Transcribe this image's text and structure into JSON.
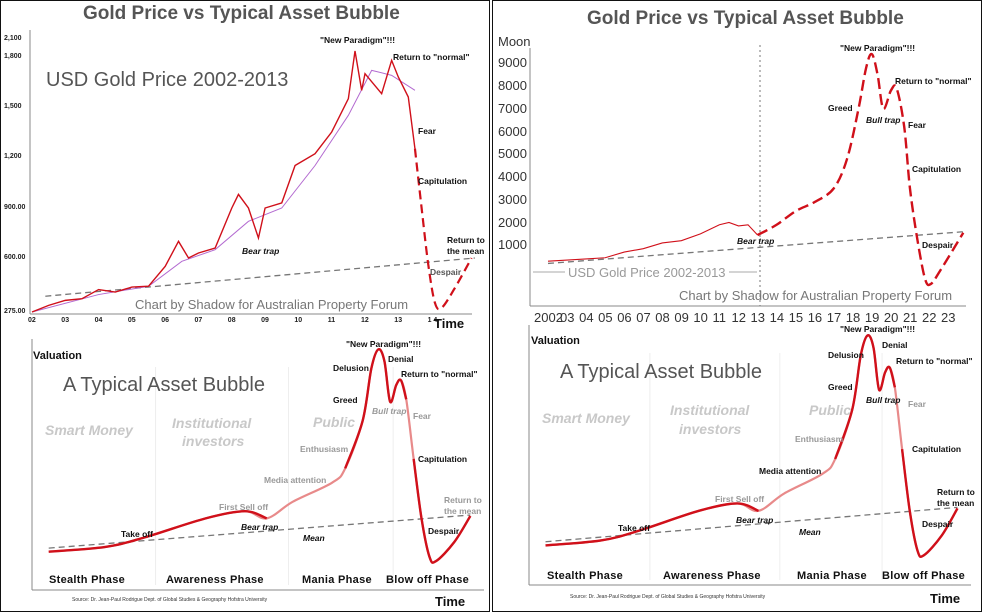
{
  "colors": {
    "price": "#d0101a",
    "price_light": "#e88a8a",
    "moving_avg": "#b36ad0",
    "mean_line": "#777777",
    "title": "#555555"
  },
  "left_panel": {
    "title": "Gold Price vs Typical Asset Bubble",
    "top": {
      "subtitle": "USD Gold Price 2002-2013",
      "watermark": "Chart by Shadow for Australian Property Forum",
      "y_ticks": [
        "2,100",
        "1,800",
        "1,500",
        "1,200",
        "900.00",
        "600.00",
        "275.00"
      ],
      "x_ticks": [
        "02",
        "03",
        "04",
        "05",
        "06",
        "07",
        "08",
        "09",
        "10",
        "11",
        "12",
        "13",
        "1 4"
      ],
      "x_label": "Time",
      "annotations": {
        "new_paradigm": "\"New Paradigm\"!!!",
        "return_normal": "Return to \"normal\"",
        "fear": "Fear",
        "capitulation": "Capitulation",
        "return_mean_1": "Return to",
        "return_mean_2": "the mean",
        "despair": "Despair",
        "bear_trap": "Bear trap"
      }
    },
    "bottom": {
      "y_label": "Valuation",
      "x_label": "Time",
      "subtitle": "A Typical Asset Bubble",
      "groups": {
        "smart": "Smart Money",
        "inst_1": "Institutional",
        "inst_2": "investors",
        "public": "Public"
      },
      "phases": [
        "Stealth Phase",
        "Awareness Phase",
        "Mania Phase",
        "Blow off Phase"
      ],
      "source": "Source: Dr. Jean-Paul Rodrigue Dept. of Global Studies & Geography Hofstra University",
      "annotations": {
        "new_paradigm": "\"New Paradigm\"!!!",
        "denial": "Denial",
        "delusion": "Delusion",
        "return_normal": "Return to \"normal\"",
        "greed": "Greed",
        "bull_trap": "Bull trap",
        "fear": "Fear",
        "enthusiasm": "Enthusiasm",
        "capitulation": "Capitulation",
        "media": "Media attention",
        "return_mean_1": "Return to",
        "return_mean_2": "the mean",
        "first_sell": "First Sell off",
        "bear_trap": "Bear trap",
        "take_off": "Take off",
        "despair": "Despair",
        "mean": "Mean"
      }
    }
  },
  "right_panel": {
    "title": "Gold Price vs Typical Asset Bubble",
    "top": {
      "y_label": "Moon",
      "y_ticks": [
        "9000",
        "8000",
        "7000",
        "6000",
        "5000",
        "4000",
        "3000",
        "2000",
        "1000"
      ],
      "x_ticks": [
        "2002",
        "03",
        "04",
        "05",
        "06",
        "07",
        "08",
        "09",
        "10",
        "11",
        "12",
        "13",
        "14",
        "15",
        "16",
        "17",
        "18",
        "19",
        "20",
        "21",
        "22",
        "23"
      ],
      "range_label": "USD Gold Price 2002-2013",
      "watermark": "Chart by Shadow for Australian Property Forum",
      "annotations": {
        "new_paradigm": "\"New Paradigm\"!!!",
        "return_normal": "Return to \"normal\"",
        "greed": "Greed",
        "bull_trap": "Bull trap",
        "fear": "Fear",
        "capitulation": "Capitulation",
        "bear_trap": "Bear trap",
        "despair": "Despair"
      }
    },
    "bottom": {
      "y_label": "Valuation",
      "x_label": "Time",
      "subtitle": "A Typical Asset Bubble",
      "groups": {
        "smart": "Smart Money",
        "inst_1": "Institutional",
        "inst_2": "investors",
        "public": "Public"
      },
      "phases": [
        "Stealth Phase",
        "Awareness Phase",
        "Mania Phase",
        "Blow off Phase"
      ],
      "source": "Source: Dr. Jean-Paul Rodrigue Dept. of Global Studies & Geography Hofstra University",
      "annotations": {
        "new_paradigm": "\"New Paradigm\"!!!",
        "denial": "Denial",
        "delusion": "Delusion",
        "return_normal": "Return to \"normal\"",
        "greed": "Greed",
        "bull_trap": "Bull trap",
        "fear": "Fear",
        "enthusiasm": "Enthusiasm",
        "capitulation": "Capitulation",
        "media": "Media attention",
        "return_mean_1": "Return to",
        "return_mean_2": "the mean",
        "first_sell": "First Sell off",
        "bear_trap": "Bear trap",
        "take_off": "Take off",
        "despair": "Despair",
        "mean": "Mean"
      }
    }
  },
  "chart_data": [
    {
      "type": "line",
      "title": "Gold Price vs Typical Asset Bubble",
      "subtitle": "USD Gold Price 2002-2013",
      "xlabel": "Time",
      "ylabel": "",
      "y_ticks": [
        275,
        600,
        900,
        1200,
        1500,
        1800,
        2100
      ],
      "xlim": [
        2002,
        2015.3
      ],
      "series": [
        {
          "style": "solid",
          "points": [
            [
              2002.0,
              275
            ],
            [
              2002.5,
              315
            ],
            [
              2003.0,
              345
            ],
            [
              2003.5,
              355
            ],
            [
              2004.0,
              410
            ],
            [
              2004.5,
              395
            ],
            [
              2005.0,
              425
            ],
            [
              2005.5,
              430
            ],
            [
              2006.0,
              550
            ],
            [
              2006.4,
              700
            ],
            [
              2006.7,
              600
            ],
            [
              2007.0,
              630
            ],
            [
              2007.5,
              660
            ],
            [
              2008.0,
              900
            ],
            [
              2008.2,
              980
            ],
            [
              2008.5,
              900
            ],
            [
              2008.8,
              720
            ],
            [
              2009.0,
              900
            ],
            [
              2009.5,
              930
            ],
            [
              2009.9,
              1150
            ],
            [
              2010.5,
              1220
            ],
            [
              2011.0,
              1350
            ],
            [
              2011.5,
              1550
            ],
            [
              2011.7,
              1900
            ],
            [
              2011.9,
              1600
            ],
            [
              2012.0,
              1700
            ],
            [
              2012.5,
              1580
            ],
            [
              2012.8,
              1780
            ],
            [
              2013.0,
              1680
            ],
            [
              2013.3,
              1560
            ],
            [
              2013.5,
              1250
            ]
          ]
        },
        {
          "style": "moving-average",
          "points": [
            [
              2002.0,
              275
            ],
            [
              2004.0,
              380
            ],
            [
              2005.5,
              430
            ],
            [
              2006.5,
              580
            ],
            [
              2007.5,
              650
            ],
            [
              2008.5,
              820
            ],
            [
              2009.5,
              900
            ],
            [
              2010.5,
              1150
            ],
            [
              2011.5,
              1450
            ],
            [
              2012.2,
              1720
            ],
            [
              2012.8,
              1690
            ],
            [
              2013.5,
              1600
            ]
          ]
        },
        {
          "style": "dashed-projection",
          "points": [
            [
              2013.5,
              1250
            ],
            [
              2013.7,
              900
            ],
            [
              2013.9,
              560
            ],
            [
              2014.1,
              330
            ],
            [
              2014.3,
              300
            ],
            [
              2014.7,
              420
            ],
            [
              2015.2,
              600
            ]
          ]
        },
        {
          "style": "mean-trend",
          "points": [
            [
              2002.4,
              370
            ],
            [
              2015.3,
              600
            ]
          ]
        }
      ]
    },
    {
      "type": "line",
      "title": "Gold Price vs Typical Asset Bubble",
      "ylabel": "Moon",
      "xlabel": "",
      "ylim": [
        0,
        9000
      ],
      "xlim": [
        2002,
        2023.9
      ],
      "series": [
        {
          "style": "solid",
          "points": [
            [
              2002,
              300
            ],
            [
              2004,
              400
            ],
            [
              2005,
              450
            ],
            [
              2006,
              700
            ],
            [
              2007,
              850
            ],
            [
              2008,
              1100
            ],
            [
              2009,
              1200
            ],
            [
              2010,
              1500
            ],
            [
              2011,
              1900
            ],
            [
              2011.5,
              2000
            ],
            [
              2012,
              1850
            ],
            [
              2012.5,
              1900
            ],
            [
              2013,
              1450
            ]
          ]
        },
        {
          "style": "dashed-projection",
          "points": [
            [
              2013,
              1450
            ],
            [
              2014,
              1900
            ],
            [
              2015,
              2500
            ],
            [
              2016,
              2900
            ],
            [
              2017,
              3500
            ],
            [
              2017.7,
              4800
            ],
            [
              2018.3,
              7000
            ],
            [
              2018.7,
              8800
            ],
            [
              2019,
              9400
            ],
            [
              2019.3,
              8500
            ],
            [
              2019.6,
              7000
            ],
            [
              2020,
              7800
            ],
            [
              2020.3,
              7900
            ],
            [
              2020.7,
              6200
            ],
            [
              2021,
              3500
            ],
            [
              2021.4,
              1200
            ],
            [
              2021.8,
              -500
            ],
            [
              2022.1,
              -700
            ],
            [
              2022.6,
              -100
            ],
            [
              2023.8,
              1550
            ]
          ]
        },
        {
          "style": "mean-trend",
          "points": [
            [
              2002,
              200
            ],
            [
              2023.9,
              1600
            ]
          ]
        }
      ]
    },
    {
      "type": "line",
      "title": "A Typical Asset Bubble",
      "xlabel": "Time",
      "ylabel": "Valuation",
      "series": [
        {
          "style": "bubble-curve",
          "points": [
            [
              2,
              14
            ],
            [
              15,
              16
            ],
            [
              24,
              20
            ],
            [
              38,
              28
            ],
            [
              47,
              31
            ],
            [
              52,
              28
            ],
            [
              58,
              35
            ],
            [
              67,
              43
            ],
            [
              70,
              49
            ],
            [
              74,
              69
            ],
            [
              76,
              91
            ],
            [
              77.6,
              99
            ],
            [
              79,
              94
            ],
            [
              80.3,
              77
            ],
            [
              81.7,
              84
            ],
            [
              82.8,
              86
            ],
            [
              84,
              78
            ],
            [
              85.7,
              53
            ],
            [
              87.5,
              28
            ],
            [
              89.3,
              12
            ],
            [
              90.8,
              10
            ],
            [
              95,
              18
            ],
            [
              98.7,
              29
            ]
          ]
        },
        {
          "style": "mean-trend",
          "points": [
            [
              2,
              15.5
            ],
            [
              98.7,
              29.4
            ]
          ]
        }
      ]
    },
    {
      "type": "line",
      "title": "A Typical Asset Bubble",
      "xlabel": "Time",
      "ylabel": "Valuation",
      "series": [
        {
          "style": "bubble-curve",
          "points": [
            [
              2,
              14
            ],
            [
              15,
              16
            ],
            [
              24,
              20
            ],
            [
              38,
              28
            ],
            [
              47,
              31
            ],
            [
              52,
              28
            ],
            [
              58,
              35
            ],
            [
              67,
              43
            ],
            [
              70,
              49
            ],
            [
              74,
              69
            ],
            [
              76,
              91
            ],
            [
              77.6,
              99
            ],
            [
              79,
              94
            ],
            [
              80.3,
              77
            ],
            [
              81.7,
              84
            ],
            [
              82.8,
              86
            ],
            [
              84,
              78
            ],
            [
              85.7,
              53
            ],
            [
              87.5,
              28
            ],
            [
              89.3,
              12
            ],
            [
              90.8,
              10
            ],
            [
              95,
              18
            ],
            [
              98.7,
              29
            ]
          ]
        },
        {
          "style": "mean-trend",
          "points": [
            [
              2,
              15.5
            ],
            [
              98.7,
              29.4
            ]
          ]
        }
      ]
    }
  ]
}
